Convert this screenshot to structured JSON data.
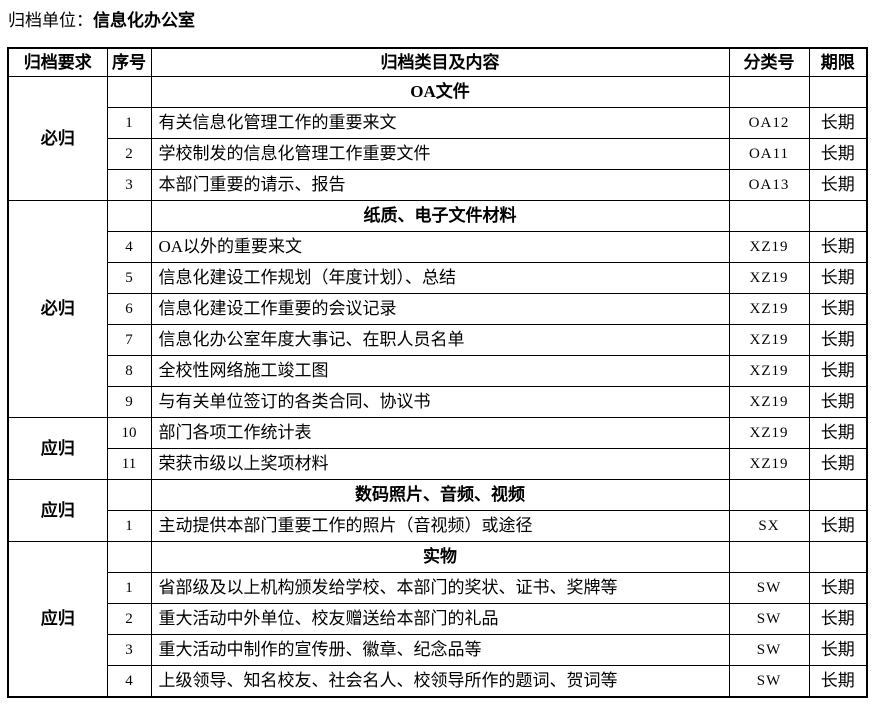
{
  "page": {
    "unit_label": "归档单位：",
    "unit_name": "信息化办公室"
  },
  "table": {
    "headers": {
      "requirement": "归档要求",
      "index": "序号",
      "content": "归档类目及内容",
      "classification": "分类号",
      "duration": "期限"
    },
    "groups": [
      {
        "requirement": "必归",
        "section": "OA文件",
        "rows": [
          {
            "index": "1",
            "content": "有关信息化管理工作的重要来文",
            "code": "OA12",
            "duration": "长期"
          },
          {
            "index": "2",
            "content": "学校制发的信息化管理工作重要文件",
            "code": "OA11",
            "duration": "长期"
          },
          {
            "index": "3",
            "content": "本部门重要的请示、报告",
            "code": "OA13",
            "duration": "长期"
          }
        ]
      },
      {
        "requirement": "必归",
        "section": "纸质、电子文件材料",
        "rows": [
          {
            "index": "4",
            "content": "OA以外的重要来文",
            "code": "XZ19",
            "duration": "长期"
          },
          {
            "index": "5",
            "content": "信息化建设工作规划（年度计划）、总结",
            "code": "XZ19",
            "duration": "长期"
          },
          {
            "index": "6",
            "content": "信息化建设工作重要的会议记录",
            "code": "XZ19",
            "duration": "长期"
          },
          {
            "index": "7",
            "content": "信息化办公室年度大事记、在职人员名单",
            "code": "XZ19",
            "duration": "长期"
          },
          {
            "index": "8",
            "content": "全校性网络施工竣工图",
            "code": "XZ19",
            "duration": "长期"
          },
          {
            "index": "9",
            "content": "与有关单位签订的各类合同、协议书",
            "code": "XZ19",
            "duration": "长期"
          }
        ]
      },
      {
        "requirement": "应归",
        "rows": [
          {
            "index": "10",
            "content": "部门各项工作统计表",
            "code": "XZ19",
            "duration": "长期"
          },
          {
            "index": "11",
            "content": "荣获市级以上奖项材料",
            "code": "XZ19",
            "duration": "长期"
          }
        ]
      },
      {
        "requirement": "应归",
        "section": "数码照片、音频、视频",
        "rows": [
          {
            "index": "1",
            "content": "主动提供本部门重要工作的照片（音视频）或途径",
            "code": "SX",
            "duration": "长期"
          }
        ]
      },
      {
        "requirement": "应归",
        "section": "实物",
        "rows": [
          {
            "index": "1",
            "content": "省部级及以上机构颁发给学校、本部门的奖状、证书、奖牌等",
            "code": "SW",
            "duration": "长期"
          },
          {
            "index": "2",
            "content": "重大活动中外单位、校友赠送给本部门的礼品",
            "code": "SW",
            "duration": "长期"
          },
          {
            "index": "3",
            "content": "重大活动中制作的宣传册、徽章、纪念品等",
            "code": "SW",
            "duration": "长期"
          },
          {
            "index": "4",
            "content": "上级领导、知名校友、社会名人、校领导所作的题词、贺词等",
            "code": "SW",
            "duration": "长期"
          }
        ]
      }
    ]
  }
}
